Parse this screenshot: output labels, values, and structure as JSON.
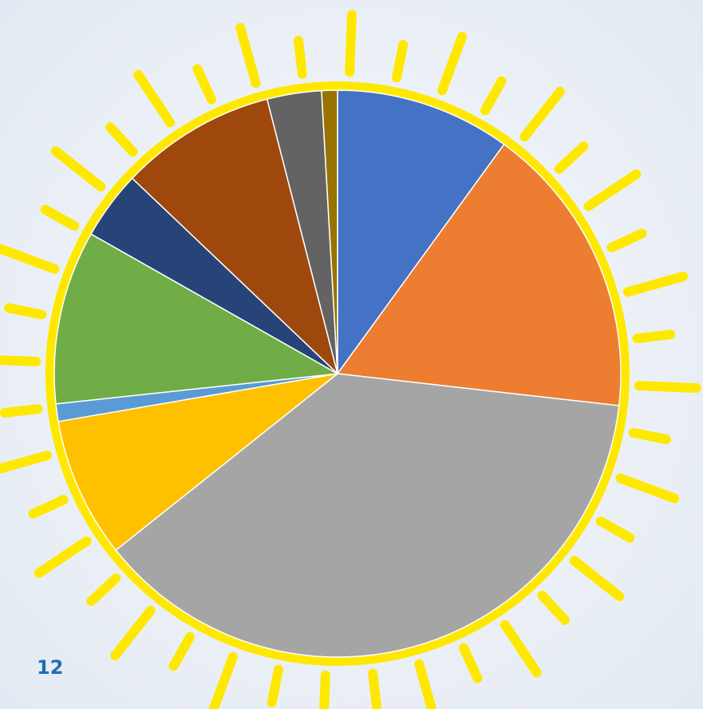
{
  "chart_data": {
    "type": "pie",
    "categories": [
      null,
      null,
      null,
      null,
      null,
      null,
      null,
      null,
      null,
      null
    ],
    "values": [
      10,
      16.8,
      37.5,
      8,
      1,
      9.9,
      3.9,
      8.9,
      3.1,
      0.9
    ],
    "colors": [
      "#4472c4",
      "#ed7d31",
      "#a5a5a5",
      "#ffc000",
      "#5b9bd5",
      "#70ad47",
      "#264478",
      "#9e480e",
      "#636363",
      "#997300"
    ],
    "start_angle": 0,
    "direction": "clockwise"
  },
  "page_number": "12"
}
